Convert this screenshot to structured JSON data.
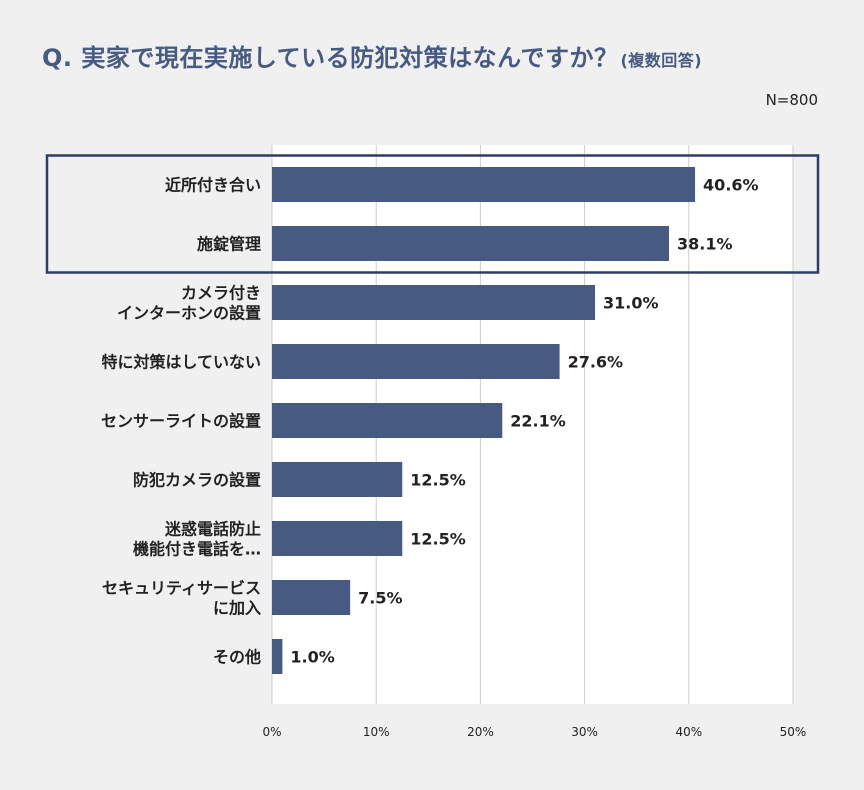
{
  "header": {
    "title": "Q. 実家で現在実施している防犯対策はなんですか？",
    "title_note": "(複数回答)",
    "sample_size": "N=800"
  },
  "colors": {
    "bar": "#475a82",
    "highlight_border": "#2d3d66",
    "title": "#475a82",
    "plot_background": "#ffffff",
    "page_background": "#f0f0f0",
    "gridline": "#cccccc"
  },
  "chart_data": {
    "type": "bar",
    "orientation": "horizontal",
    "categories": [
      [
        "近所付き合い"
      ],
      [
        "施錠管理"
      ],
      [
        "カメラ付き",
        "インターホンの設置"
      ],
      [
        "特に対策はしていない"
      ],
      [
        "センサーライトの設置"
      ],
      [
        "防犯カメラの設置"
      ],
      [
        "迷惑電話防止",
        "機能付き電話を…"
      ],
      [
        "セキュリティサービス",
        "に加入"
      ],
      [
        "その他"
      ]
    ],
    "values": [
      40.6,
      38.1,
      31.0,
      27.6,
      22.1,
      12.5,
      12.5,
      7.5,
      1.0
    ],
    "value_labels": [
      "40.6%",
      "38.1%",
      "31.0%",
      "27.6%",
      "22.1%",
      "12.5%",
      "12.5%",
      "7.5%",
      "1.0%"
    ],
    "x_ticks": [
      "0%",
      "10%",
      "20%",
      "30%",
      "40%",
      "50%"
    ],
    "xlim": [
      0,
      50
    ],
    "grid": true,
    "highlighted_categories": [
      0,
      1
    ]
  }
}
